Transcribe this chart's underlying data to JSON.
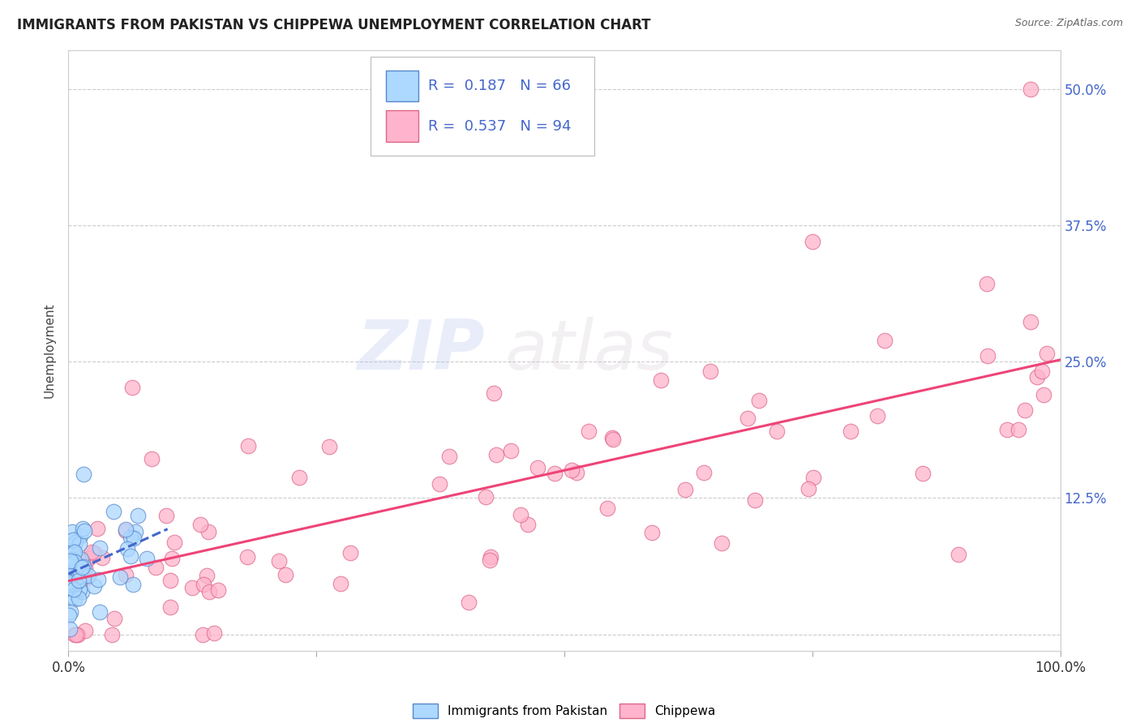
{
  "title": "IMMIGRANTS FROM PAKISTAN VS CHIPPEWA UNEMPLOYMENT CORRELATION CHART",
  "source": "Source: ZipAtlas.com",
  "ylabel": "Unemployment",
  "xlim": [
    0,
    1.0
  ],
  "ylim": [
    -0.015,
    0.535
  ],
  "ytick_positions": [
    0.0,
    0.125,
    0.25,
    0.375,
    0.5
  ],
  "ytick_labels": [
    "",
    "12.5%",
    "25.0%",
    "37.5%",
    "50.0%"
  ],
  "xtick_positions": [
    0.0,
    0.25,
    0.5,
    0.75,
    1.0
  ],
  "xtick_labels_bottom": [
    "0.0%",
    "",
    "",
    "",
    "100.0%"
  ],
  "grid_color": "#cccccc",
  "background_color": "#ffffff",
  "color_pakistan": "#add8ff",
  "color_chippewa": "#ffb3cc",
  "color_pakistan_edge": "#5588cc",
  "color_chippewa_edge": "#dd6688",
  "color_blue_text": "#4466cc",
  "color_pink_line": "#ee4477",
  "color_blue_line": "#4466cc",
  "legend_R1": "R =  0.187",
  "legend_N1": "N = 66",
  "legend_R2": "R =  0.537",
  "legend_N2": "N = 94"
}
